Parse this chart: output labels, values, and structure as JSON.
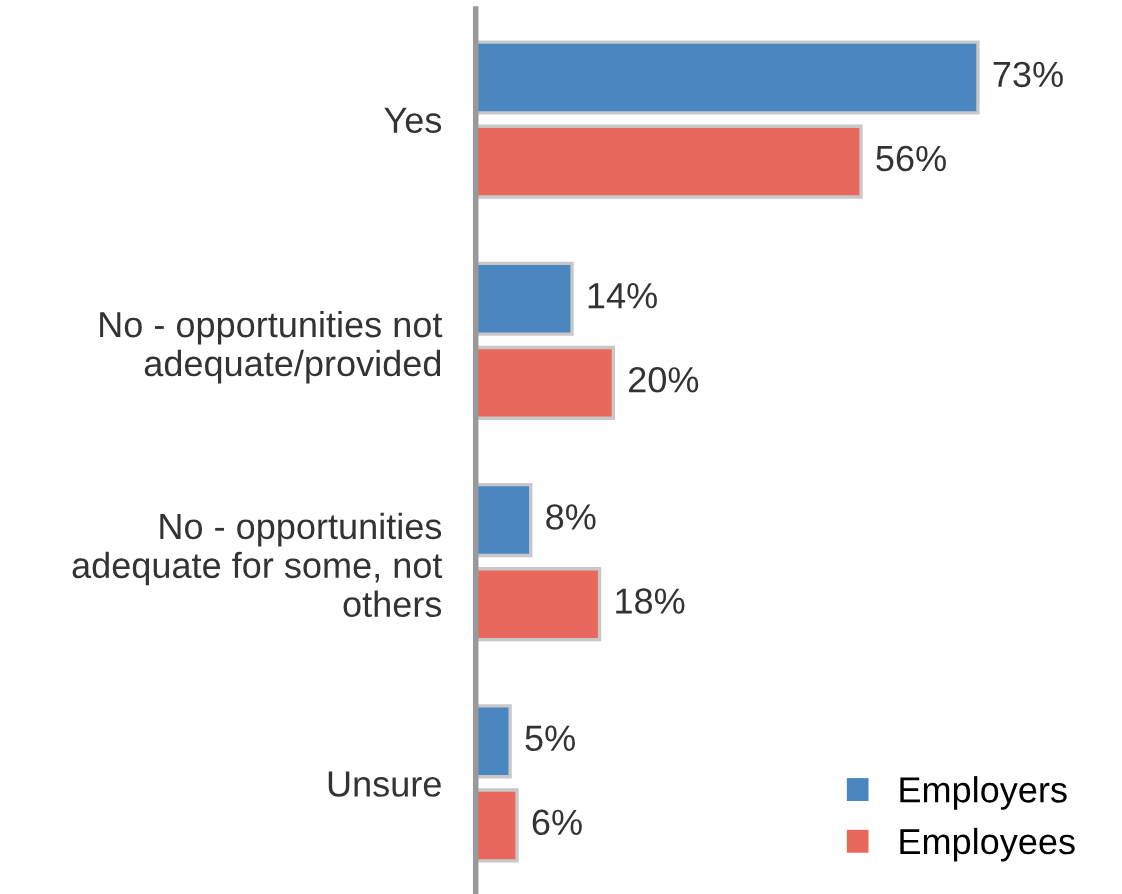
{
  "chart_data": {
    "type": "bar",
    "orientation": "horizontal",
    "categories": [
      "Yes",
      "No - opportunities not\nadequate/provided",
      "No - opportunities\nadequate for some, not\nothers",
      "Unsure"
    ],
    "series": [
      {
        "name": "Employers",
        "color": "#4a86c0",
        "values": [
          73,
          14,
          8,
          5
        ],
        "value_labels": [
          "73%",
          "14%",
          "8%",
          "5%"
        ]
      },
      {
        "name": "Employees",
        "color": "#e8695b",
        "values": [
          56,
          20,
          18,
          6
        ],
        "value_labels": [
          "56%",
          "20%",
          "18%",
          "6%"
        ]
      }
    ],
    "tick_labels": "y",
    "grid": false,
    "legend": "bottom right"
  }
}
